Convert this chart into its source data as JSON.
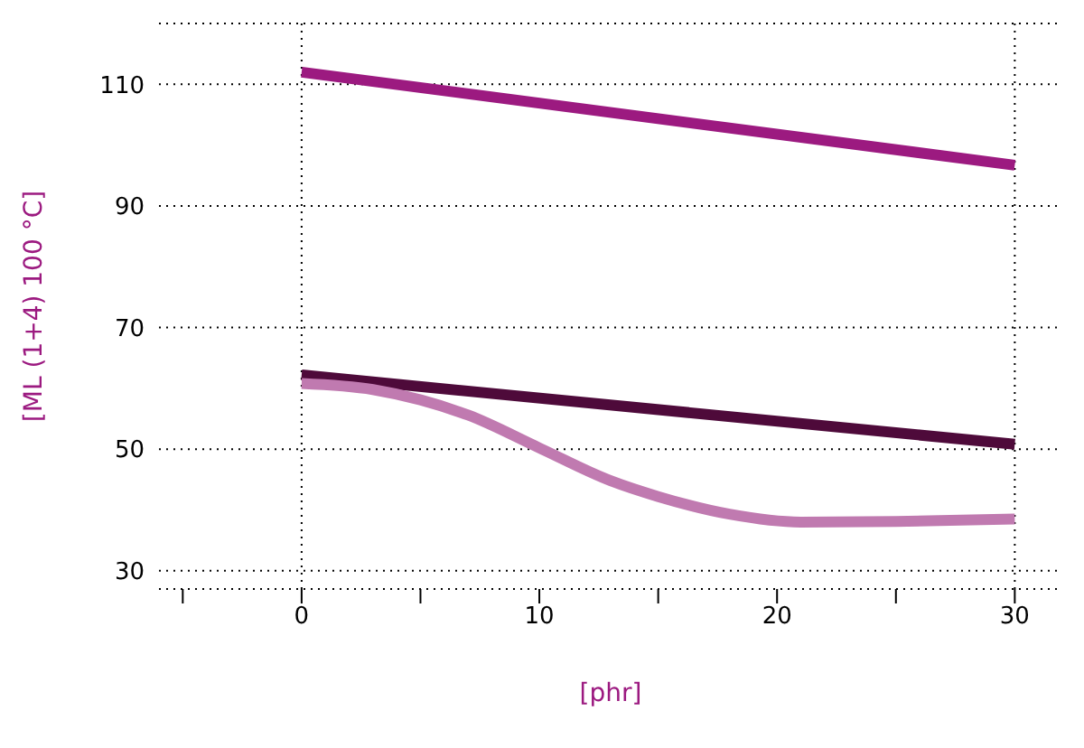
{
  "chart_data": {
    "type": "line",
    "xlabel": "[phr]",
    "ylabel": "[ML (1+4) 100 °C]",
    "xlim": [
      -6,
      32
    ],
    "ylim": [
      27,
      120
    ],
    "xticks": [
      {
        "value": -5,
        "label": null
      },
      0,
      {
        "value": 5,
        "label": null
      },
      10,
      {
        "value": 15,
        "label": null
      },
      20,
      {
        "value": 25,
        "label": null
      },
      30
    ],
    "yticks": [
      30,
      50,
      70,
      90,
      110
    ],
    "grid": "y",
    "legend": false,
    "marker": "none",
    "line_style": "solid",
    "ref_lines": [
      {
        "axis": "x",
        "value": 0,
        "line_style": "dotted"
      },
      {
        "axis": "x",
        "value": 30,
        "line_style": "dotted"
      }
    ],
    "series": [
      {
        "color": "#9c1a80",
        "x": [
          0,
          30
        ],
        "values": [
          112,
          96.7
        ]
      },
      {
        "color": "#4e0a3a",
        "x": [
          0,
          30
        ],
        "values": [
          62.2,
          50.8
        ]
      },
      {
        "color": "#c07ab0",
        "x": [
          0,
          3,
          5,
          7,
          10,
          13,
          15,
          18,
          21,
          25,
          30
        ],
        "values": [
          60.8,
          59.8,
          58.1,
          55.6,
          50.2,
          44.8,
          42.2,
          39.3,
          38,
          38.1,
          38.5
        ]
      }
    ]
  }
}
